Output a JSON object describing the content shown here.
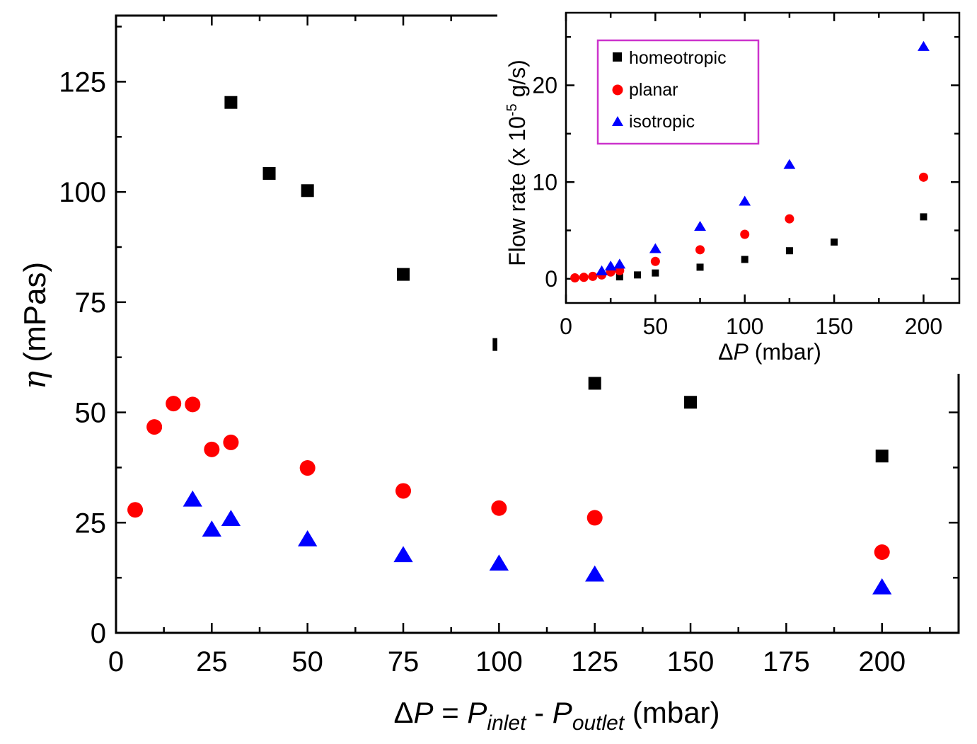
{
  "chart_data": [
    {
      "type": "scatter",
      "role": "main",
      "ylabel": {
        "symbol": "η",
        "text": " (mPas)"
      },
      "xlabel": {
        "prefix": "Δ",
        "p1": "P",
        "eq": " = ",
        "p2": "P",
        "sub2": "inlet",
        "dash": " - ",
        "p3": "P",
        "sub3": "outlet",
        "unit": " (mbar)"
      },
      "xlim": [
        0,
        220
      ],
      "ylim": [
        0,
        140
      ],
      "xticks": [
        "0",
        "25",
        "50",
        "75",
        "100",
        "125",
        "150",
        "175",
        "200"
      ],
      "yticks": [
        "0",
        "25",
        "50",
        "75",
        "100",
        "125"
      ],
      "series": [
        {
          "name": "homeotropic",
          "marker": "square",
          "color": "#000000",
          "x": [
            30,
            40,
            50,
            75,
            100,
            125,
            150,
            200
          ],
          "y": [
            120.3,
            104.2,
            100.3,
            81.3,
            65.4,
            56.6,
            52.3,
            40.1
          ]
        },
        {
          "name": "planar",
          "marker": "circle",
          "color": "#ff0000",
          "x": [
            5,
            10,
            15,
            20,
            25,
            30,
            50,
            75,
            100,
            125,
            200
          ],
          "y": [
            27.9,
            46.7,
            52.0,
            51.8,
            41.6,
            43.2,
            37.4,
            32.2,
            28.3,
            26.1,
            18.3
          ]
        },
        {
          "name": "isotropic",
          "marker": "triangle",
          "color": "#0000ff",
          "x": [
            20,
            25,
            30,
            50,
            75,
            100,
            125,
            200
          ],
          "y": [
            30.2,
            23.4,
            25.8,
            21.2,
            17.6,
            15.7,
            13.2,
            10.3
          ]
        }
      ]
    },
    {
      "type": "scatter",
      "role": "inset",
      "ylabel": {
        "text": "Flow rate  (x 10",
        "sup": "-5",
        "tail": " g/s)"
      },
      "xlabel": {
        "prefix": "Δ",
        "p": "P",
        "unit": " (mbar)"
      },
      "xlim": [
        0,
        220
      ],
      "ylim": [
        -2.5,
        27.5
      ],
      "xticks": [
        "0",
        "50",
        "100",
        "150",
        "200"
      ],
      "yticks": [
        "0",
        "10",
        "20"
      ],
      "legend": {
        "position": "top-left",
        "entries": [
          "homeotropic",
          "planar",
          "isotropic"
        ],
        "border_color": "#cc33cc"
      },
      "series": [
        {
          "name": "homeotropic",
          "marker": "square",
          "color": "#000000",
          "x": [
            30,
            40,
            50,
            75,
            100,
            125,
            150,
            200
          ],
          "y": [
            0.2,
            0.4,
            0.6,
            1.2,
            2.0,
            2.9,
            3.8,
            6.4
          ]
        },
        {
          "name": "planar",
          "marker": "circle",
          "color": "#ff0000",
          "x": [
            5,
            10,
            15,
            20,
            25,
            30,
            50,
            75,
            100,
            125,
            200
          ],
          "y": [
            0.1,
            0.15,
            0.25,
            0.4,
            0.7,
            0.85,
            1.8,
            3.0,
            4.6,
            6.2,
            10.5
          ]
        },
        {
          "name": "isotropic",
          "marker": "triangle",
          "color": "#0000ff",
          "x": [
            20,
            25,
            30,
            50,
            75,
            100,
            125,
            200
          ],
          "y": [
            0.8,
            1.3,
            1.5,
            3.1,
            5.4,
            8.0,
            11.8,
            24.0
          ]
        }
      ]
    }
  ]
}
